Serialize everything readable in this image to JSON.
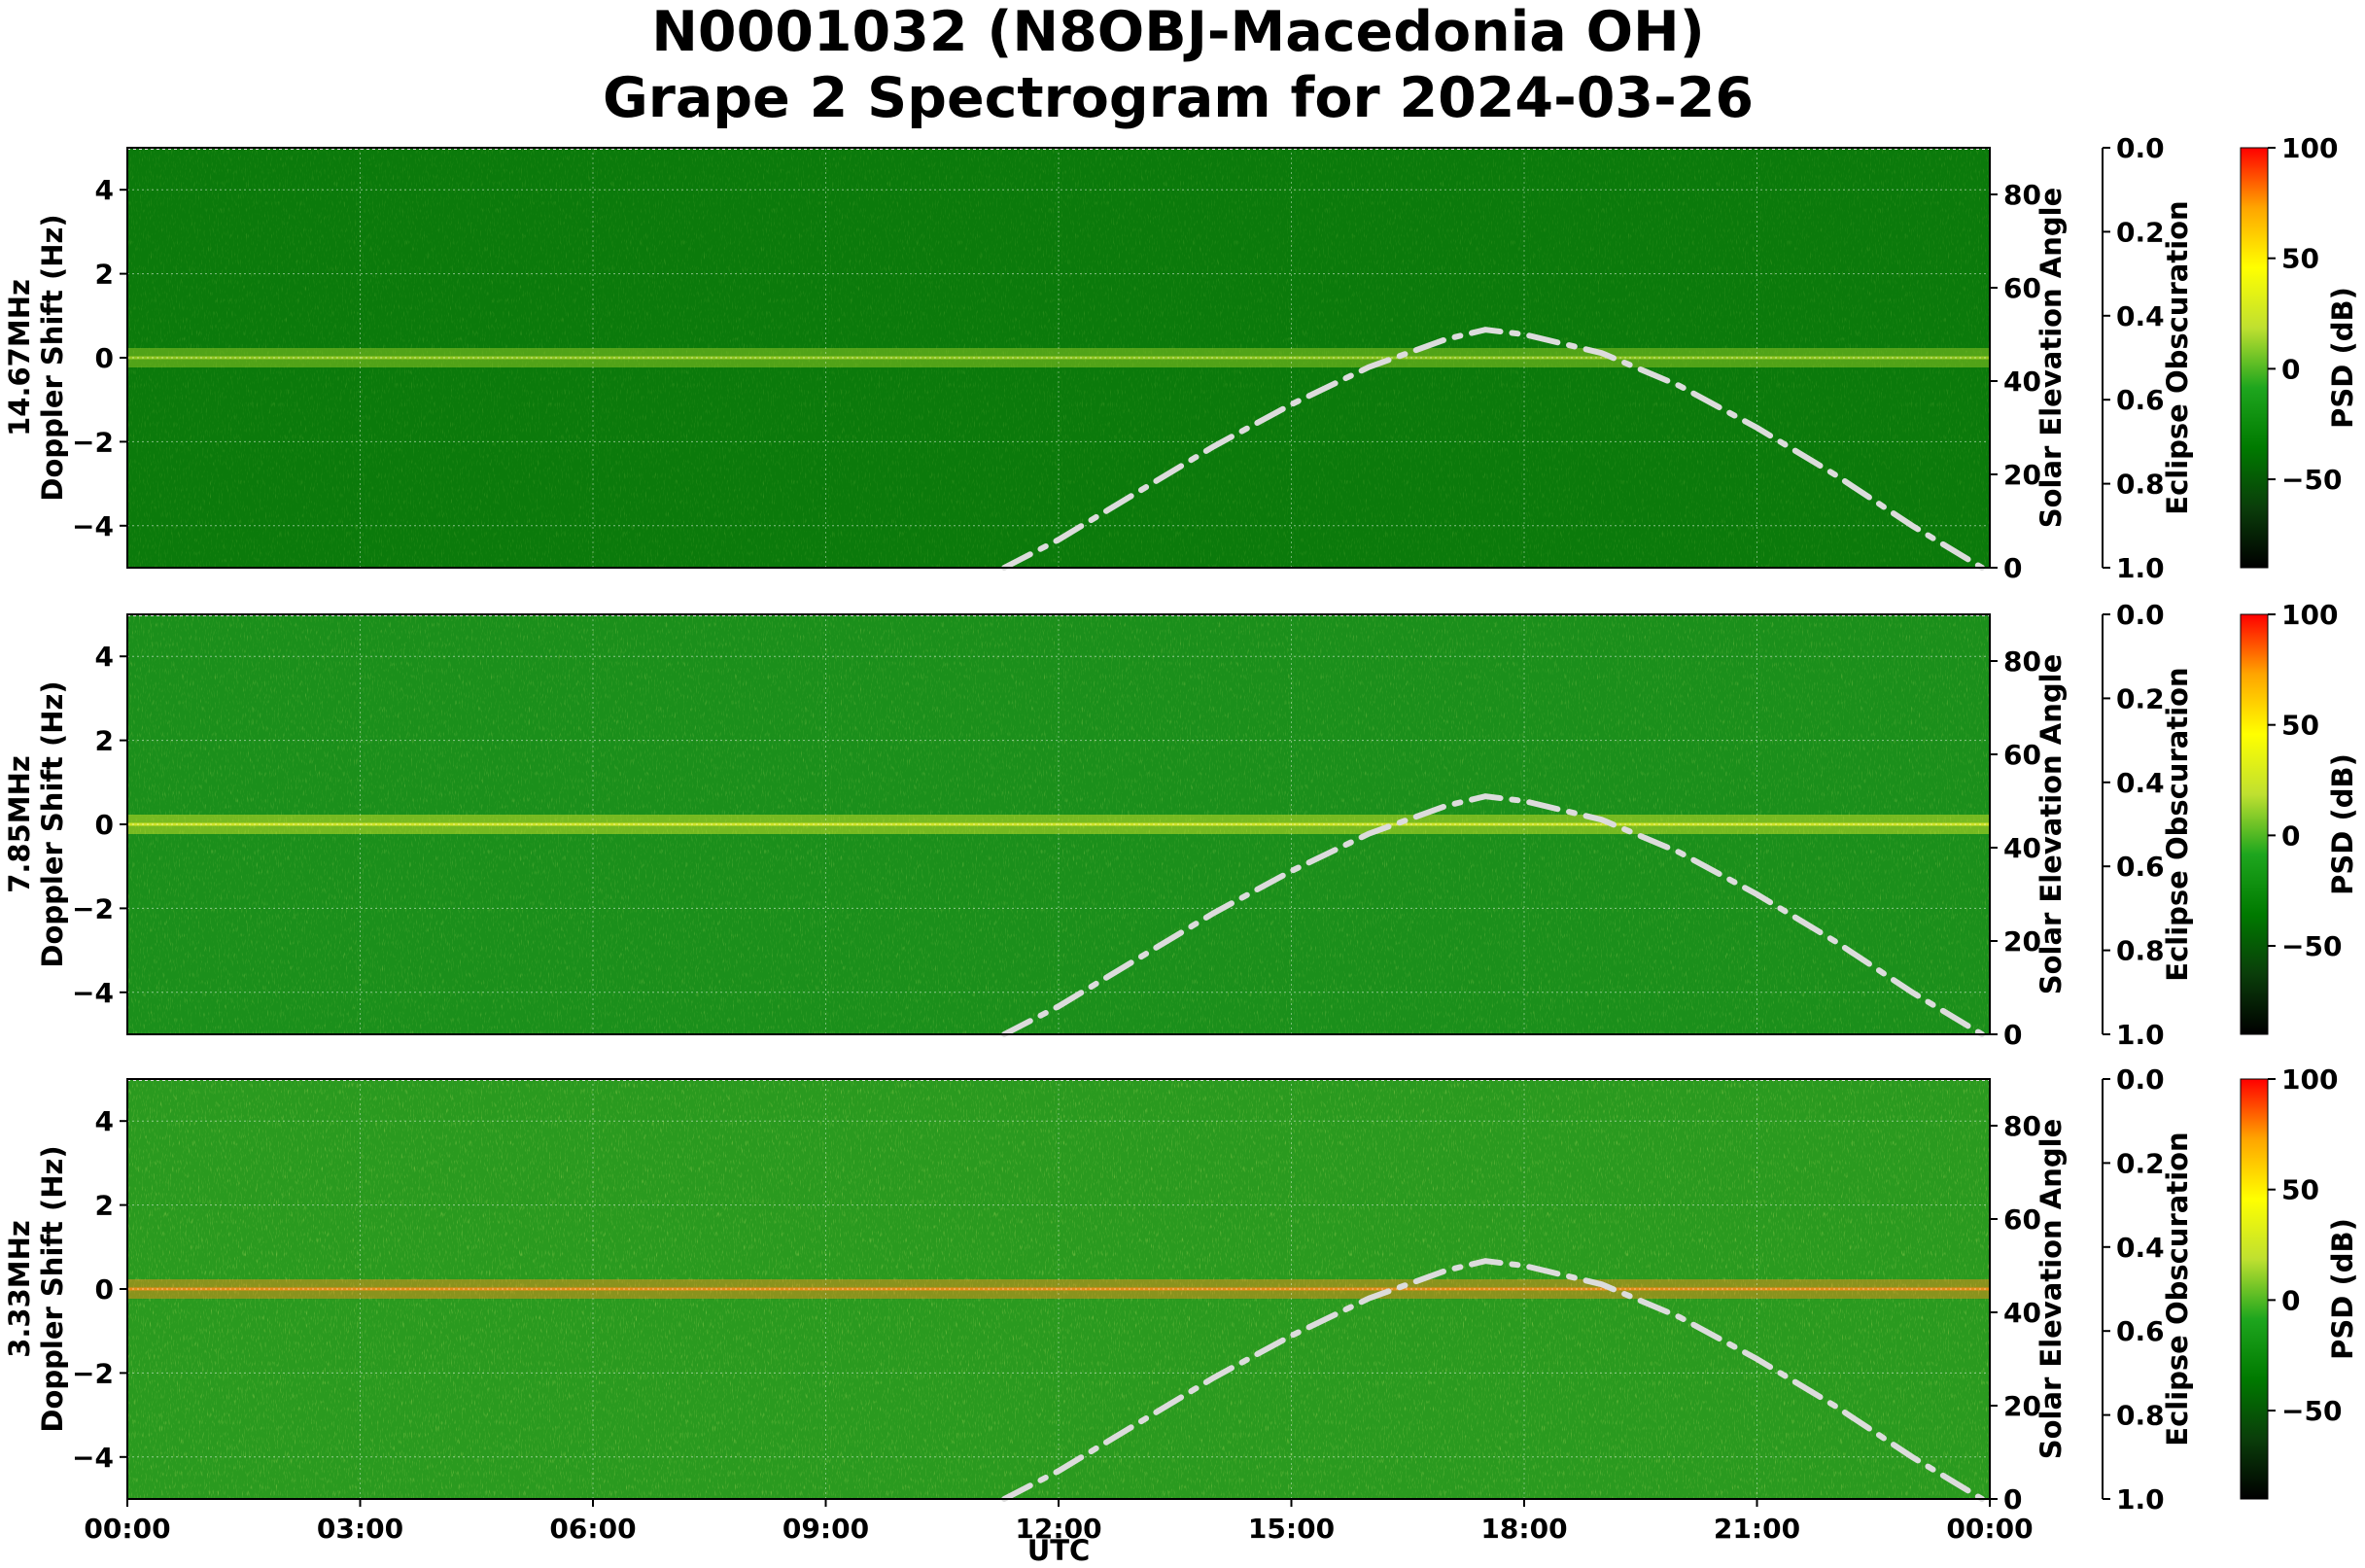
{
  "title": {
    "line1": "N0001032 (N8OBJ-Macedonia OH)",
    "line2": "Grape 2 Spectrogram for 2024-03-26"
  },
  "chart_data": {
    "type": "heatmap",
    "x_label": "UTC",
    "x_ticks": [
      "00:00",
      "03:00",
      "06:00",
      "09:00",
      "12:00",
      "15:00",
      "18:00",
      "21:00",
      "00:00"
    ],
    "x_range_hours": [
      0,
      24
    ],
    "y_range": [
      -5,
      5
    ],
    "y_ticks": [
      "4",
      "2",
      "0",
      "−2",
      "−4"
    ],
    "y_tick_values": [
      4,
      2,
      0,
      -2,
      -4
    ],
    "right_axis": {
      "label": "Solar Elevation Angle",
      "ticks": [
        "80",
        "60",
        "40",
        "20",
        "0"
      ],
      "tick_values": [
        80,
        60,
        40,
        20,
        0
      ],
      "range": [
        0,
        90
      ]
    },
    "eclipse_axis": {
      "label": "Eclipse Obscuration",
      "ticks": [
        "0.0",
        "0.2",
        "0.4",
        "0.6",
        "0.8",
        "1.0"
      ],
      "tick_values": [
        0.0,
        0.2,
        0.4,
        0.6,
        0.8,
        1.0
      ]
    },
    "colorbar": {
      "label": "PSD (dB)",
      "ticks": [
        "100",
        "50",
        "0",
        "−50"
      ],
      "tick_values": [
        100,
        50,
        0,
        -50
      ],
      "range": [
        -90,
        100
      ],
      "colors": [
        "#000000",
        "#0a3d0a",
        "#007a00",
        "#1ea61e",
        "#bfe030",
        "#ffff00",
        "#ffa500",
        "#ff0000"
      ]
    },
    "solar_elevation_curve": {
      "hours": [
        11.3,
        12,
        13,
        14,
        15,
        16,
        17,
        17.5,
        18,
        19,
        20,
        21,
        22,
        23,
        23.9
      ],
      "degrees": [
        0,
        6,
        16,
        26,
        35,
        43,
        49,
        51,
        50,
        46,
        39,
        30,
        20,
        9,
        0
      ]
    },
    "panels": [
      {
        "label_line1": "14.67MHz",
        "label_line2": "Doppler Shift (Hz)"
      },
      {
        "label_line1": "7.85MHz",
        "label_line2": "Doppler Shift (Hz)"
      },
      {
        "label_line1": "3.33MHz",
        "label_line2": "Doppler Shift (Hz)"
      }
    ]
  }
}
